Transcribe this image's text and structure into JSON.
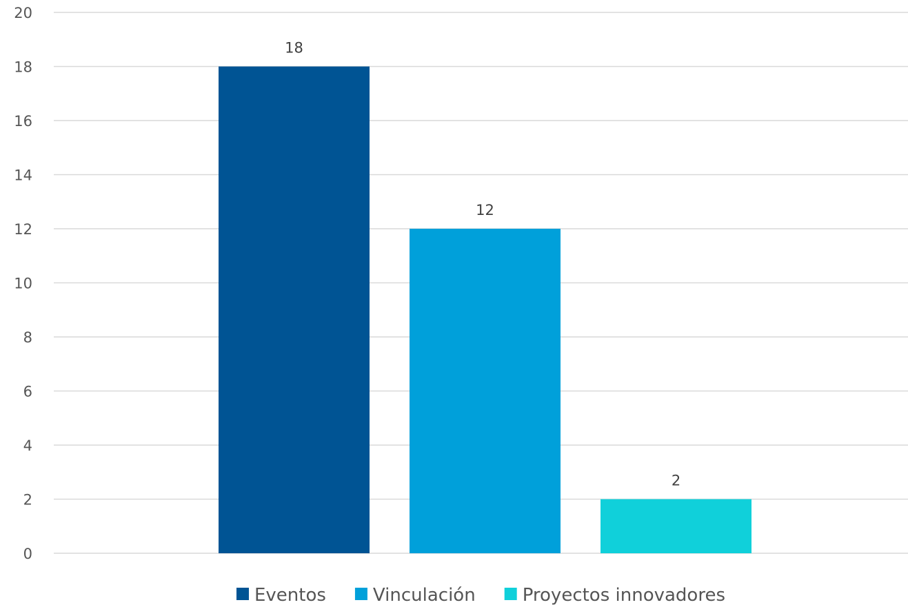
{
  "chart_data": {
    "type": "bar",
    "title": "",
    "xlabel": "",
    "ylabel": "",
    "ylim": [
      0,
      20
    ],
    "yticks": [
      0,
      2,
      4,
      6,
      8,
      10,
      12,
      14,
      16,
      18,
      20
    ],
    "grid": true,
    "legend_position": "bottom",
    "categories": [
      ""
    ],
    "series": [
      {
        "name": "Eventos",
        "values": [
          18
        ],
        "color": "#005494"
      },
      {
        "name": "Vinculación",
        "values": [
          12
        ],
        "color": "#00A0DA"
      },
      {
        "name": "Proyectos innovadores",
        "values": [
          2
        ],
        "color": "#10D0DA"
      }
    ],
    "data_labels": [
      "18",
      "12",
      "2"
    ]
  }
}
